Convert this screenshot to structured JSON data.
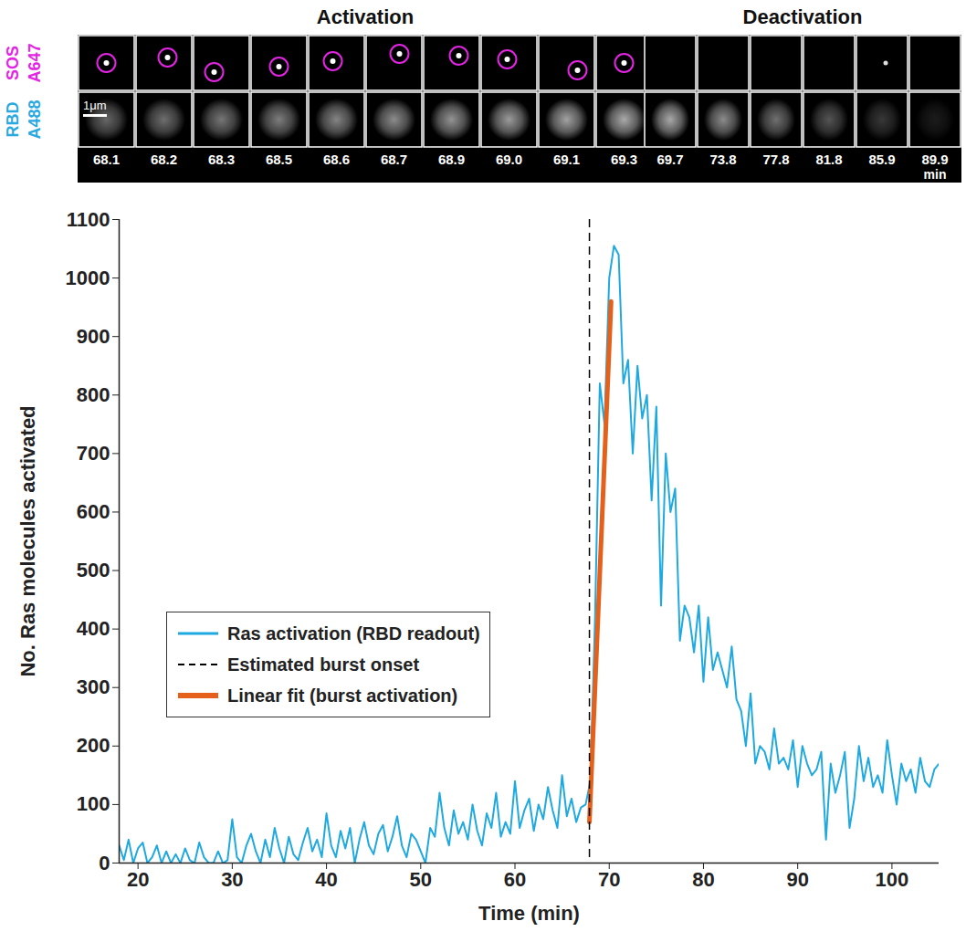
{
  "chart_data": {
    "type": "line",
    "x_label": "Time (min)",
    "y_label": "No. Ras molecules activated",
    "xlim": [
      18,
      105
    ],
    "xticks": [
      20,
      30,
      40,
      50,
      60,
      70,
      80,
      90,
      100
    ],
    "ylim": [
      0,
      1100
    ],
    "yticks": [
      0,
      100,
      200,
      300,
      400,
      500,
      600,
      700,
      800,
      900,
      1000,
      1100
    ],
    "legend": "left",
    "series": [
      {
        "name": "Ras activation (RBD readout)",
        "type": "line",
        "color": "#1fa9e1",
        "line_style": "solid",
        "x": [
          18.0,
          18.5,
          19.0,
          19.5,
          20.0,
          20.5,
          21.0,
          21.5,
          22.0,
          22.5,
          23.0,
          23.5,
          24.0,
          24.5,
          25.0,
          25.5,
          26.0,
          26.5,
          27.0,
          27.5,
          28.0,
          28.5,
          29.0,
          29.5,
          30.0,
          30.5,
          31.0,
          31.5,
          32.0,
          32.5,
          33.0,
          33.5,
          34.0,
          34.5,
          35.0,
          35.5,
          36.0,
          36.5,
          37.0,
          37.5,
          38.0,
          38.5,
          39.0,
          39.5,
          40.0,
          40.5,
          41.0,
          41.5,
          42.0,
          42.5,
          43.0,
          43.5,
          44.0,
          44.5,
          45.0,
          45.5,
          46.0,
          46.5,
          47.0,
          47.5,
          48.0,
          48.5,
          49.0,
          49.5,
          50.0,
          50.5,
          51.0,
          51.5,
          52.0,
          52.5,
          53.0,
          53.5,
          54.0,
          54.5,
          55.0,
          55.5,
          56.0,
          56.5,
          57.0,
          57.5,
          58.0,
          58.5,
          59.0,
          59.5,
          60.0,
          60.5,
          61.0,
          61.5,
          62.0,
          62.5,
          63.0,
          63.5,
          64.0,
          64.5,
          65.0,
          65.5,
          66.0,
          66.5,
          67.0,
          67.5,
          68.0,
          68.5,
          69.0,
          69.5,
          70.0,
          70.5,
          71.0,
          71.5,
          72.0,
          72.5,
          73.0,
          73.5,
          74.0,
          74.5,
          75.0,
          75.5,
          76.0,
          76.5,
          77.0,
          77.5,
          78.0,
          78.5,
          79.0,
          79.5,
          80.0,
          80.5,
          81.0,
          81.5,
          82.0,
          82.5,
          83.0,
          83.5,
          84.0,
          84.5,
          85.0,
          85.5,
          86.0,
          86.5,
          87.0,
          87.5,
          88.0,
          88.5,
          89.0,
          89.5,
          90.0,
          90.5,
          91.0,
          91.5,
          92.0,
          92.5,
          93.0,
          93.5,
          94.0,
          94.5,
          95.0,
          95.5,
          96.0,
          96.5,
          97.0,
          97.5,
          98.0,
          98.5,
          99.0,
          99.5,
          100.0,
          100.5,
          101.0,
          101.5,
          102.0,
          102.5,
          103.0,
          103.5,
          104.0,
          104.5,
          105.0
        ],
        "values": [
          30,
          5,
          40,
          0,
          25,
          35,
          0,
          10,
          30,
          0,
          20,
          0,
          15,
          0,
          25,
          5,
          0,
          35,
          10,
          0,
          0,
          20,
          0,
          5,
          75,
          10,
          0,
          30,
          50,
          20,
          0,
          40,
          10,
          60,
          25,
          0,
          45,
          15,
          5,
          35,
          60,
          20,
          40,
          10,
          85,
          30,
          10,
          55,
          25,
          60,
          0,
          40,
          70,
          30,
          15,
          50,
          65,
          20,
          45,
          80,
          30,
          10,
          50,
          40,
          20,
          0,
          60,
          45,
          120,
          60,
          30,
          90,
          50,
          70,
          40,
          100,
          55,
          30,
          85,
          60,
          120,
          45,
          70,
          50,
          140,
          60,
          90,
          110,
          55,
          100,
          75,
          130,
          90,
          60,
          150,
          80,
          110,
          70,
          95,
          100,
          140,
          420,
          820,
          750,
          1000,
          1055,
          1040,
          820,
          860,
          700,
          850,
          760,
          800,
          620,
          780,
          440,
          700,
          600,
          640,
          380,
          440,
          420,
          360,
          440,
          310,
          420,
          330,
          360,
          330,
          300,
          370,
          280,
          260,
          200,
          290,
          170,
          200,
          190,
          160,
          230,
          170,
          180,
          160,
          210,
          130,
          200,
          170,
          150,
          160,
          190,
          40,
          170,
          120,
          150,
          190,
          60,
          110,
          200,
          140,
          180,
          130,
          150,
          120,
          210,
          150,
          100,
          170,
          140,
          160,
          120,
          180,
          140,
          130,
          160,
          170
        ]
      },
      {
        "name": "Linear fit (burst activation)",
        "type": "line",
        "color": "#e5601a",
        "line_style": "solid",
        "x": [
          67.9,
          70.2
        ],
        "values": [
          70,
          960
        ]
      }
    ],
    "markers": [
      {
        "name": "Estimated burst onset",
        "x": 67.9,
        "color": "#000000",
        "line_style": "dashed"
      }
    ]
  },
  "image_panels": {
    "rows": [
      {
        "name": "SOS",
        "label": "A647",
        "color": "#e324e3"
      },
      {
        "name": "RBD",
        "label": "A488",
        "color": "#29a9e0"
      }
    ],
    "groups": [
      {
        "title": "Activation",
        "times": [
          "68.1",
          "68.2",
          "68.3",
          "68.5",
          "68.6",
          "68.7",
          "68.9",
          "69.0",
          "69.1",
          "69.3"
        ]
      },
      {
        "title": "Deactivation",
        "times": [
          "69.7",
          "73.8",
          "77.8",
          "81.8",
          "85.9",
          "89.9"
        ],
        "unit": "min"
      }
    ],
    "scale_bar": "1μm"
  }
}
